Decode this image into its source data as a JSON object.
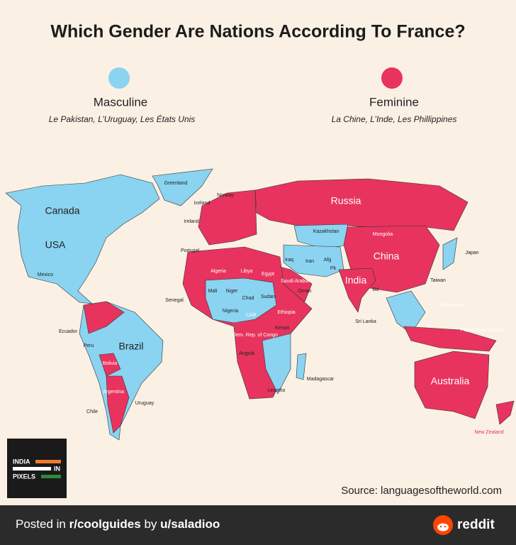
{
  "header": {
    "title": "Which Gender Are Nations According To  France?"
  },
  "legend": {
    "masculine": {
      "label": "Masculine",
      "examples": "Le Pakistan, L’Uruguay, Les États Unis"
    },
    "feminine": {
      "label": "Feminine",
      "examples": "La Chine, L’Inde, Les Phillippines"
    }
  },
  "map": {
    "labels": [
      "Greenland",
      "Canada",
      "USA",
      "Mexico",
      "Ecuador",
      "Peru",
      "Brazil",
      "Bolivia",
      "Argentina",
      "Chile",
      "Uruguay",
      "Iceland",
      "Ireland",
      "Norway",
      "Portugal",
      "Russia",
      "Kazakhstan",
      "Mongolia",
      "China",
      "Japan",
      "Iran",
      "Afg",
      "Pk",
      "India",
      "Bd",
      "Sri Lanka",
      "Taiwan",
      "Philippines",
      "Papua New Guinea",
      "Australia",
      "New Zealand",
      "Algeria",
      "Libya",
      "Egypt",
      "Saudi Arabia",
      "Oman",
      "Iraq",
      "Mali",
      "Niger",
      "Chad",
      "Sudan",
      "Nigeria",
      "Senegal",
      "CAR",
      "Ethiopia",
      "Kenya",
      "Dem. Rep. of Congo",
      "Angola",
      "Madagascar",
      "Lesotho"
    ]
  },
  "logo": {
    "line1": "INDIA",
    "line2": "IN",
    "line3": "PIXELS"
  },
  "source": "Source: languagesoftheworld.com",
  "footer": {
    "prefix": "Posted in",
    "subreddit": "r/coolguides",
    "by": "by",
    "user": "u/saladioo",
    "brand": "reddit"
  }
}
